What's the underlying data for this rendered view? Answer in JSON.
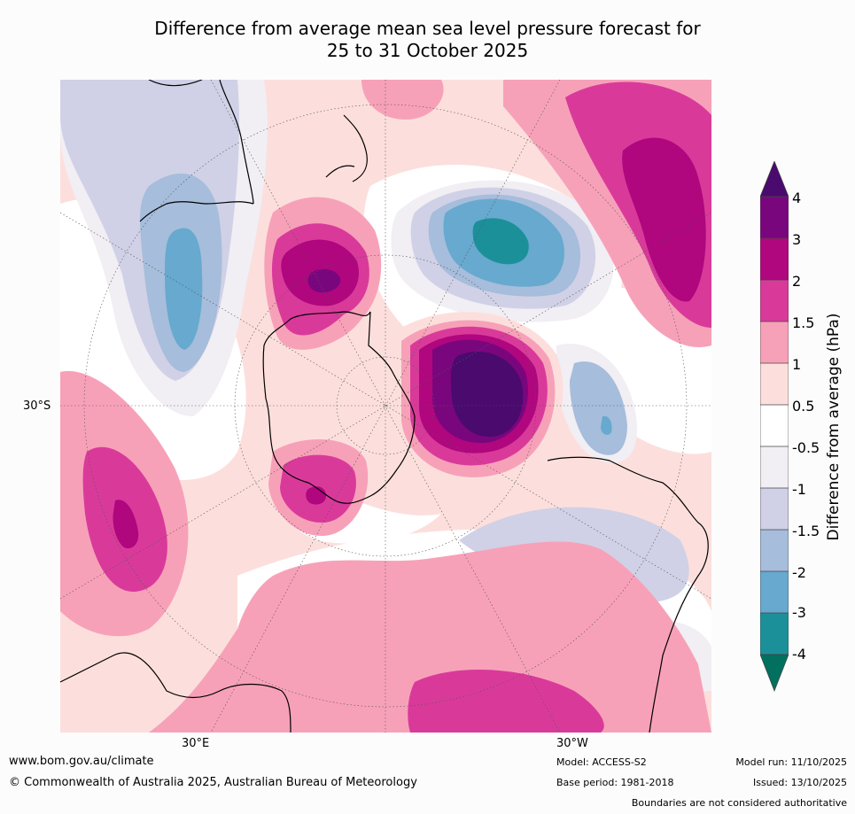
{
  "title": {
    "line1": "Difference from average mean sea level pressure forecast for",
    "line2": "25 to 31 October 2025"
  },
  "map": {
    "projection": "south-polar-stereographic",
    "latitude_labels": [
      "30°S"
    ],
    "longitude_labels": [
      "30°E",
      "30°W"
    ],
    "anomaly_regions": [
      {
        "name": "high-south-australia",
        "peak_hpa": 2.5
      },
      {
        "name": "high-east-of-new-zealand",
        "peak_hpa": 2.5
      },
      {
        "name": "high-drake-passage",
        "peak_hpa": 4
      },
      {
        "name": "low-tasman-sea",
        "peak_hpa": -3.5
      },
      {
        "name": "low-indian-ocean",
        "peak_hpa": -2.5
      },
      {
        "name": "high-south-africa",
        "peak_hpa": 2
      }
    ]
  },
  "colorbar": {
    "title": "Difference from average (hPa)",
    "ticks": [
      "4",
      "3",
      "2",
      "1.5",
      "1",
      "0.5",
      "-0.5",
      "-1",
      "-1.5",
      "-2",
      "-3",
      "-4"
    ],
    "colors": {
      "above_4": "#4a0a6e",
      "c3_4": "#7a067e",
      "c2_3": "#b0067e",
      "c15_2": "#d93a9a",
      "c1_15": "#f7a1b9",
      "c05_1": "#fcdfdc",
      "neutral": "#ffffff",
      "cm1_m05": "#f1eef4",
      "cm15_m1": "#d0d1e6",
      "cm2_m15": "#a6bddb",
      "cm3_m2": "#67a9cf",
      "cm4_m3": "#1c9099",
      "below_m4": "#02705e"
    }
  },
  "footer": {
    "website": "www.bom.gov.au/climate",
    "copyright": "© Commonwealth of Australia 2025, Australian Bureau of Meteorology",
    "model": "Model: ACCESS-S2",
    "base_period": "Base period: 1981-2018",
    "model_run": "Model run: 11/10/2025",
    "issued": "Issued: 13/10/2025",
    "disclaimer": "Boundaries are not considered authoritative"
  }
}
